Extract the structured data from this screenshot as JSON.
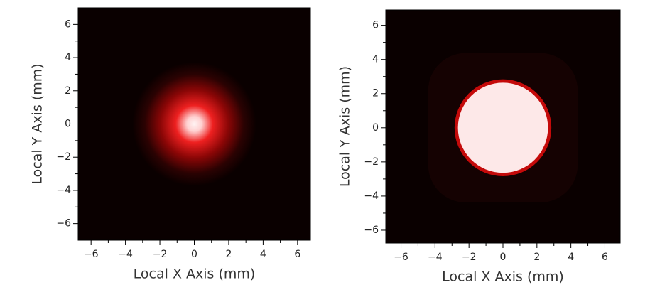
{
  "chart_data": [
    {
      "type": "heatmap",
      "xlabel": "Local X Axis (mm)",
      "ylabel": "Local Y Axis (mm)",
      "xlim": [
        -6.75,
        6.75
      ],
      "ylim": [
        -7,
        7
      ],
      "xticks": [
        {
          "value": -6,
          "label": "−6"
        },
        {
          "value": -4,
          "label": "−4"
        },
        {
          "value": -2,
          "label": "−2"
        },
        0,
        2,
        4,
        6
      ],
      "yticks": [
        {
          "value": -6,
          "label": "−6"
        },
        {
          "value": -4,
          "label": "−4"
        },
        {
          "value": -2,
          "label": "−2"
        },
        0,
        2,
        4,
        6
      ]
    },
    {
      "type": "heatmap",
      "xlabel": "Local X Axis (mm)",
      "ylabel": "Local Y Axis (mm)",
      "xlim": [
        -6.9,
        6.9
      ],
      "ylim": [
        -6.75,
        6.9
      ],
      "xticks": [
        {
          "value": -6,
          "label": "−6"
        },
        {
          "value": -4,
          "label": "−4"
        },
        {
          "value": -2,
          "label": "−2"
        },
        0,
        2,
        4,
        6
      ],
      "yticks": [
        {
          "value": -6,
          "label": "−6"
        },
        {
          "value": -4,
          "label": "−4"
        },
        {
          "value": -2,
          "label": "−2"
        },
        0,
        2,
        4,
        6
      ]
    }
  ]
}
